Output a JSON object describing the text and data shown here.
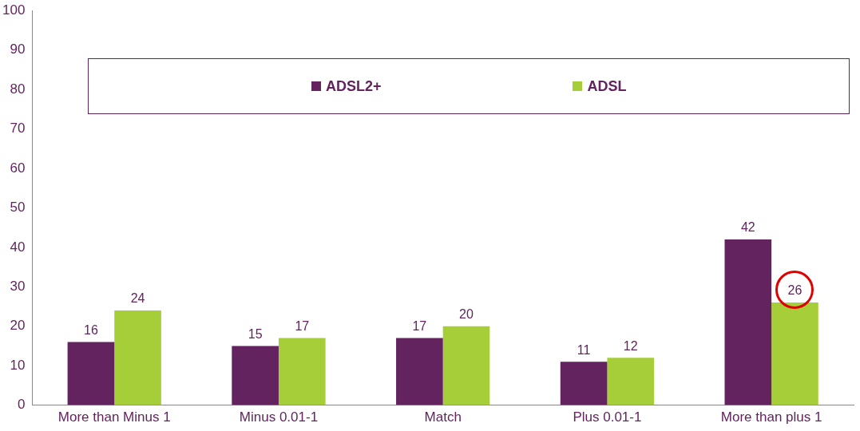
{
  "chart_data": {
    "type": "bar",
    "categories": [
      "More than Minus 1",
      "Minus 0.01-1",
      "Match",
      "Plus 0.01-1",
      "More than plus 1"
    ],
    "series": [
      {
        "name": "ADSL2+",
        "color": "#62235f",
        "values": [
          16,
          15,
          17,
          11,
          42
        ]
      },
      {
        "name": "ADSL",
        "color": "#a6ce39",
        "values": [
          24,
          17,
          20,
          12,
          26
        ]
      }
    ],
    "ylim": [
      0,
      100
    ],
    "yticks": [
      0,
      10,
      20,
      30,
      40,
      50,
      60,
      70,
      80,
      90,
      100
    ],
    "grid": false,
    "legend": "top",
    "data_labels": true
  }
}
